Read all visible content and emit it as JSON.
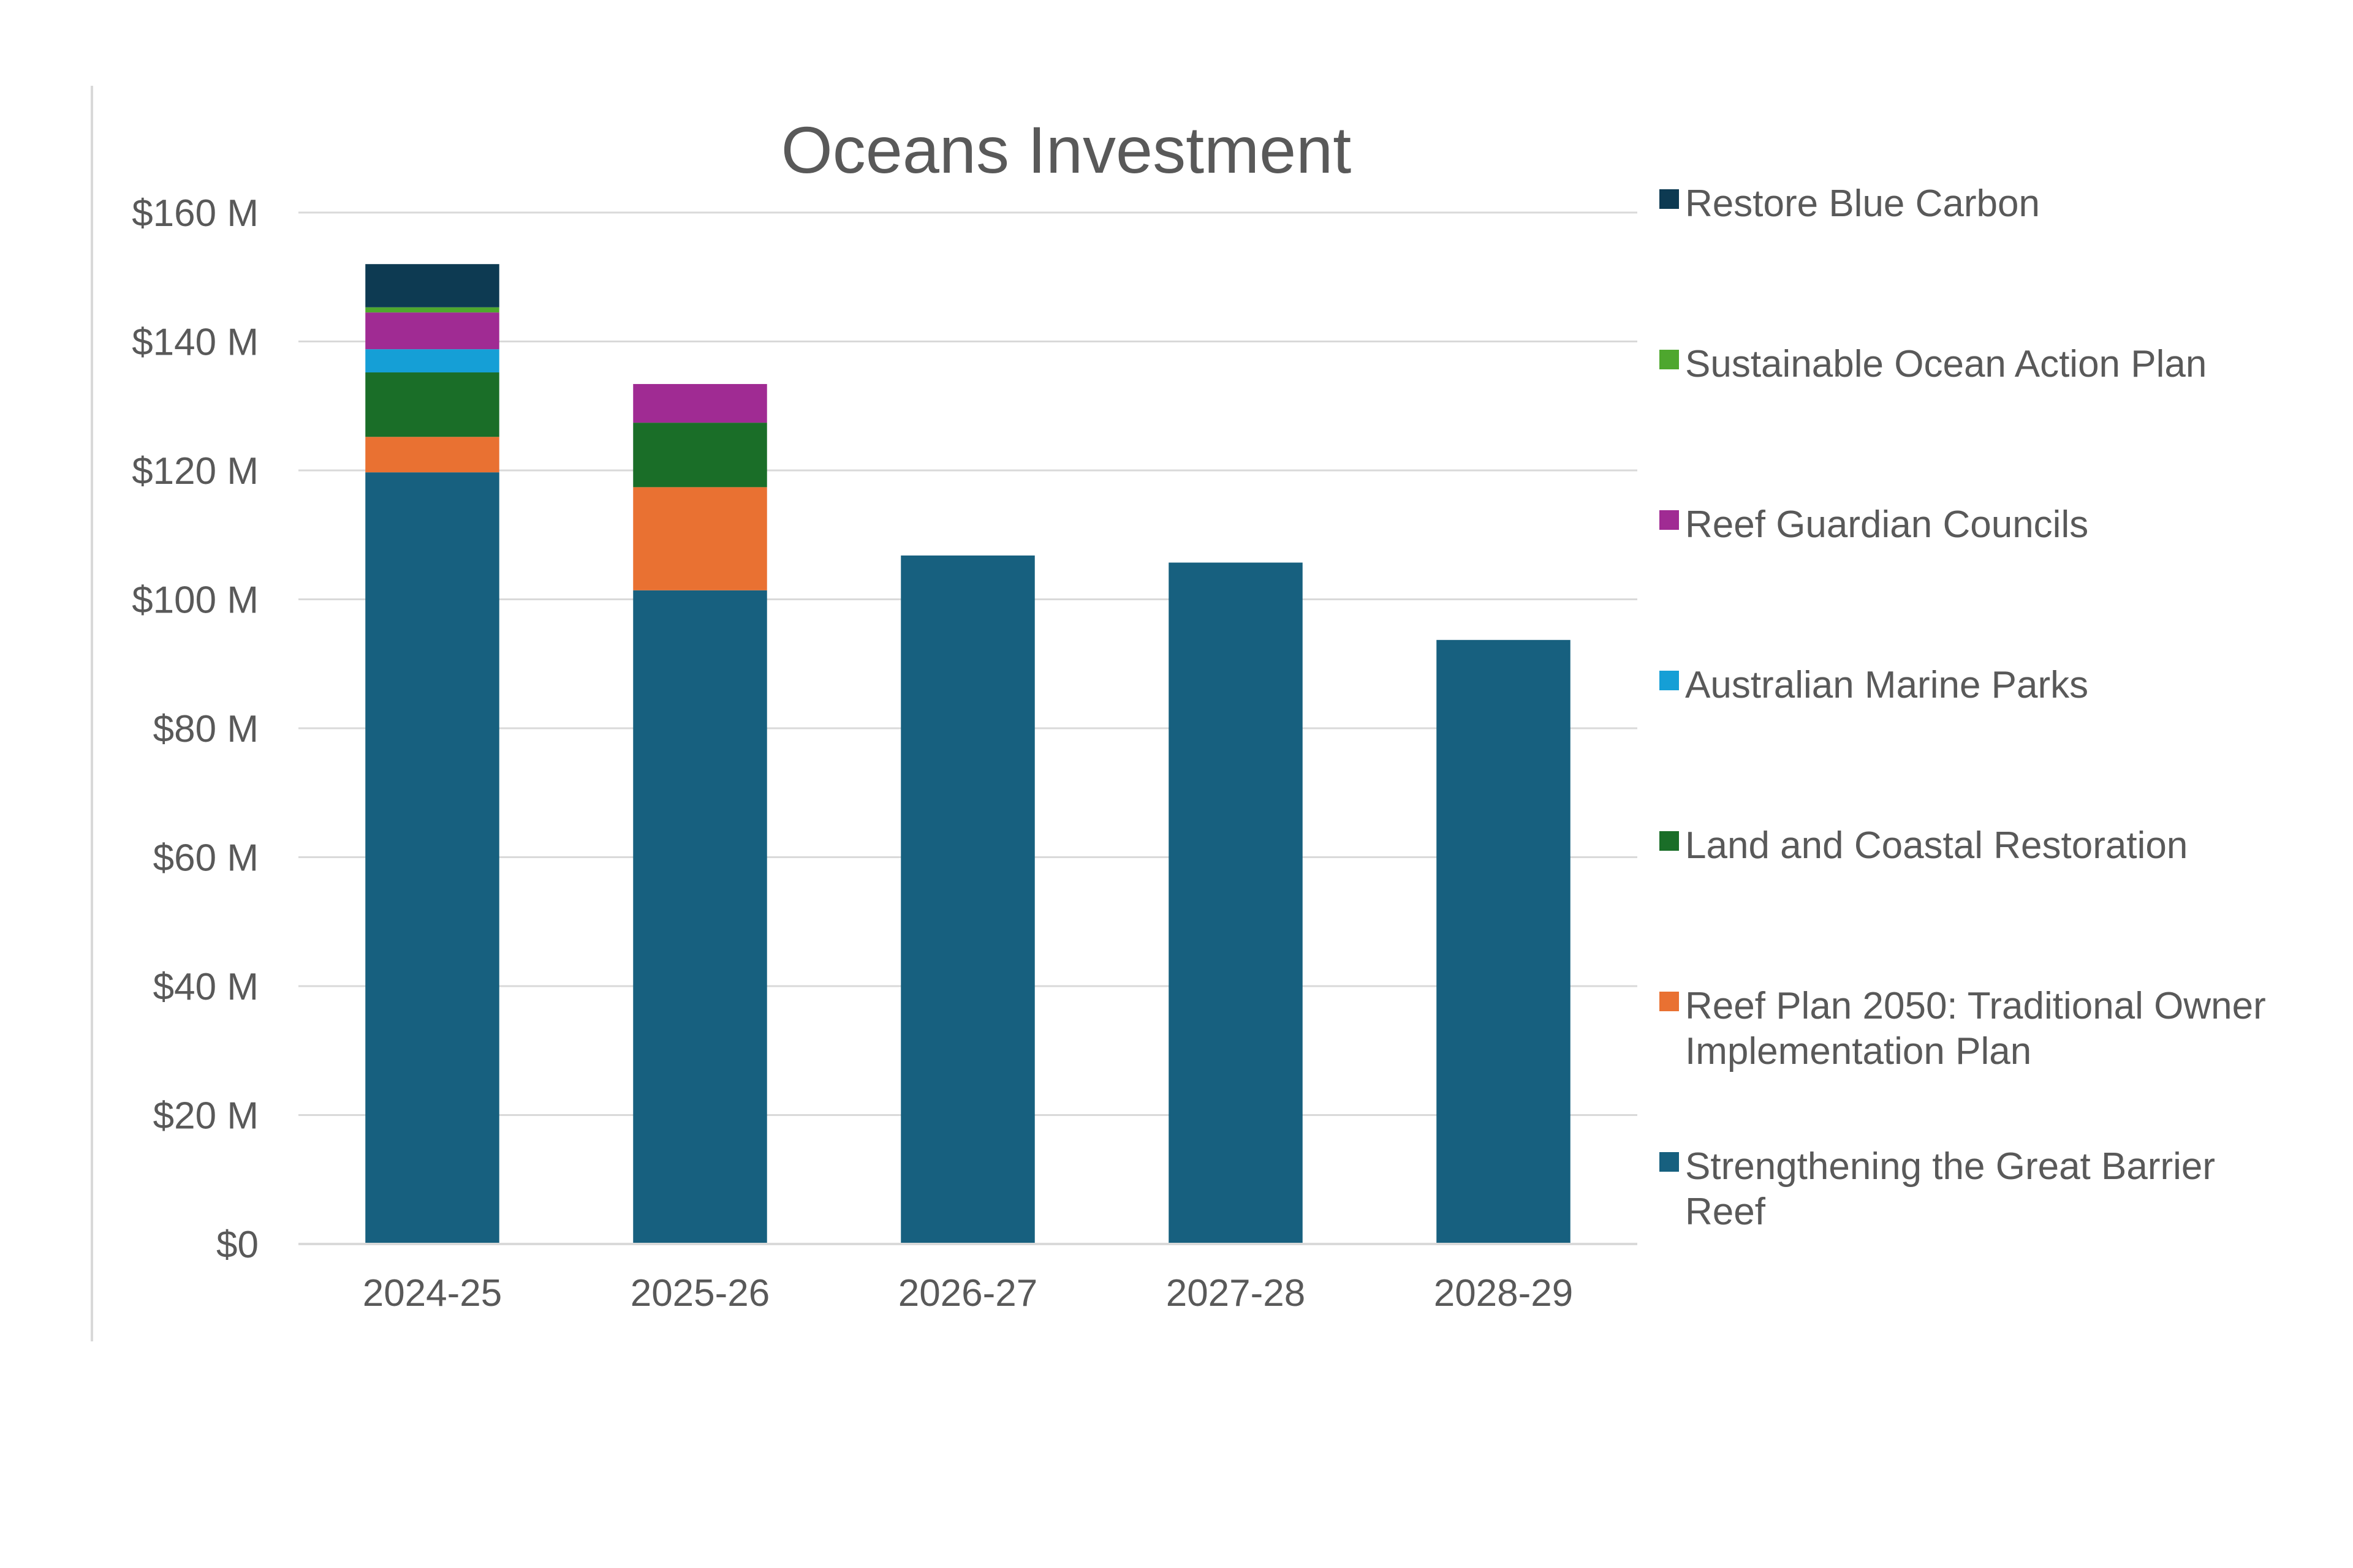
{
  "chart_data": {
    "type": "bar",
    "stacked": true,
    "title": "Oceans Investment",
    "xlabel": "",
    "ylabel": "",
    "ylim": [
      0,
      160
    ],
    "yticks": [
      0,
      20,
      40,
      60,
      80,
      100,
      120,
      140,
      160
    ],
    "ytick_labels": [
      "$0",
      "$20 M",
      "$40 M",
      "$60 M",
      "$80 M",
      "$100 M",
      "$120 M",
      "$140 M",
      "$160 M"
    ],
    "grid": true,
    "legend_position": "right",
    "categories": [
      "2024-25",
      "2025-26",
      "2026-27",
      "2027-28",
      "2028-29"
    ],
    "series": [
      {
        "name": "Strengthening the Great Barrier Reef",
        "color": "#17607f",
        "values": [
          119.7,
          101.4,
          106.8,
          105.7,
          93.7
        ]
      },
      {
        "name": "Reef Plan 2050: Traditional Owner Implementation Plan",
        "color": "#e97132",
        "values": [
          5.5,
          16.0,
          0,
          0,
          0
        ]
      },
      {
        "name": "Land and Coastal Restoration",
        "color": "#1a6e28",
        "values": [
          10.0,
          10.0,
          0,
          0,
          0
        ]
      },
      {
        "name": "Australian Marine Parks",
        "color": "#159fd6",
        "values": [
          3.6,
          0,
          0,
          0,
          0
        ]
      },
      {
        "name": "Reef Guardian Councils",
        "color": "#a02b93",
        "values": [
          5.7,
          6.0,
          0,
          0,
          0
        ]
      },
      {
        "name": "Sustainable Ocean Action Plan",
        "color": "#4ea72e",
        "values": [
          0.8,
          0,
          0,
          0,
          0
        ]
      },
      {
        "name": "Restore Blue Carbon",
        "color": "#0d3a52",
        "values": [
          6.7,
          0,
          0,
          0,
          0
        ]
      }
    ],
    "legend": [
      {
        "name": "Restore Blue Carbon",
        "lines": [
          "Restore Blue Carbon"
        ],
        "color": "#0d3a52"
      },
      {
        "name": "Sustainable Ocean Action Plan",
        "lines": [
          "Sustainable Ocean Action Plan"
        ],
        "color": "#4ea72e"
      },
      {
        "name": "Reef Guardian Councils",
        "lines": [
          "Reef Guardian Councils"
        ],
        "color": "#a02b93"
      },
      {
        "name": "Australian Marine Parks",
        "lines": [
          "Australian Marine Parks"
        ],
        "color": "#159fd6"
      },
      {
        "name": "Land and Coastal Restoration",
        "lines": [
          "Land and Coastal Restoration"
        ],
        "color": "#1a6e28"
      },
      {
        "name": "Reef Plan 2050: Traditional Owner Implementation Plan",
        "lines": [
          "Reef Plan 2050: Traditional Owner",
          "Implementation Plan"
        ],
        "color": "#e97132"
      },
      {
        "name": "Strengthening the Great Barrier Reef",
        "lines": [
          "Strengthening the Great Barrier",
          "Reef"
        ],
        "color": "#17607f"
      }
    ]
  }
}
